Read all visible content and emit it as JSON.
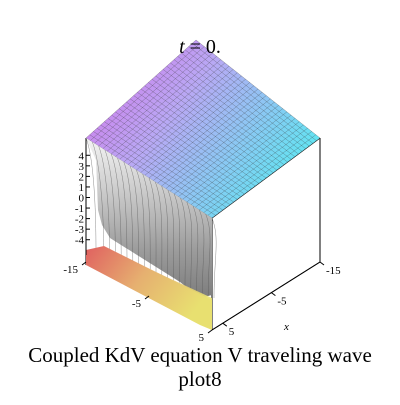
{
  "plot_title": {
    "variable": "t",
    "rest": " = 0."
  },
  "caption": {
    "line1": "Coupled KdV equation V traveling wave",
    "line2": "plot8"
  },
  "chart_data": {
    "type": "surface",
    "z_ticks": [
      "4",
      "3",
      "2",
      "1",
      "0",
      "-1",
      "-2",
      "-3",
      "-4"
    ],
    "z_values": [
      4,
      3,
      2,
      1,
      0,
      -1,
      -2,
      -3,
      -4
    ],
    "left_axis_ticks": [
      "-15",
      "-5",
      "5"
    ],
    "right_axis_ticks": [
      "-15",
      "-5",
      "5"
    ],
    "right_axis_label": "x",
    "zlim": [
      -4.5,
      4.5
    ],
    "surface": {
      "low_level": -4.5,
      "high_level": 4.5,
      "shape": "kink / step profile"
    },
    "colors": {
      "magenta": "#d86ae8",
      "cyan": "#5fe6f2",
      "yellow": "#e8e070",
      "red": "#e06060",
      "gray": "#bcbcbc"
    }
  }
}
